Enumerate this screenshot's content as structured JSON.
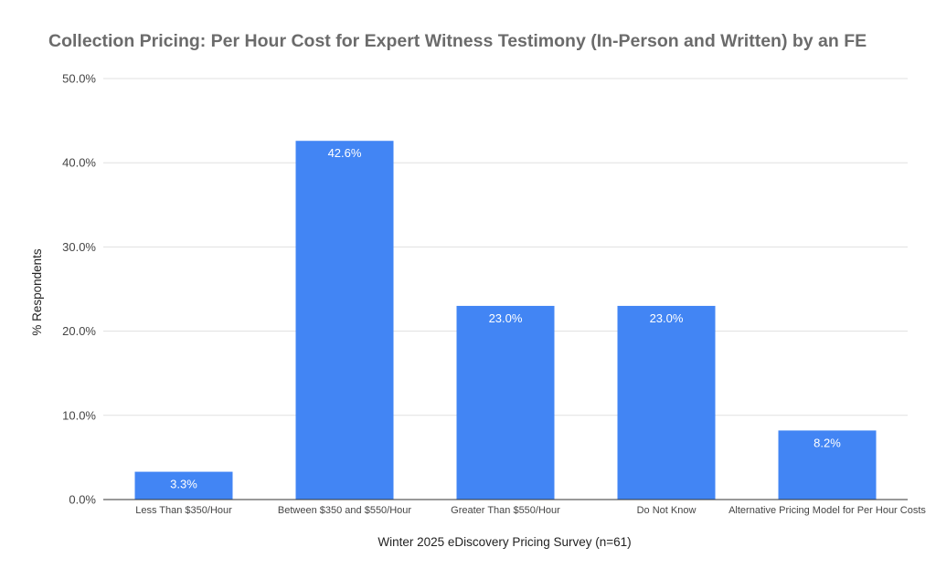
{
  "chart_data": {
    "type": "bar",
    "title": "Collection Pricing: Per Hour Cost for Expert Witness Testimony (In-Person and Written) by an FE",
    "xlabel": "Winter 2025 eDiscovery Pricing Survey (n=61)",
    "ylabel": "% Respondents",
    "categories": [
      "Less Than $350/Hour",
      "Between $350 and $550/Hour",
      "Greater Than $550/Hour",
      "Do Not Know",
      "Alternative Pricing Model for Per Hour Costs"
    ],
    "values": [
      3.3,
      42.6,
      23.0,
      23.0,
      8.2
    ],
    "value_labels": [
      "3.3%",
      "42.6%",
      "23.0%",
      "23.0%",
      "8.2%"
    ],
    "ylim": [
      0,
      50
    ],
    "yticks": [
      0,
      10,
      20,
      30,
      40,
      50
    ],
    "ytick_labels": [
      "0.0%",
      "10.0%",
      "20.0%",
      "30.0%",
      "40.0%",
      "50.0%"
    ],
    "grid": true,
    "legend": "none",
    "bar_color": "#4285f4"
  }
}
